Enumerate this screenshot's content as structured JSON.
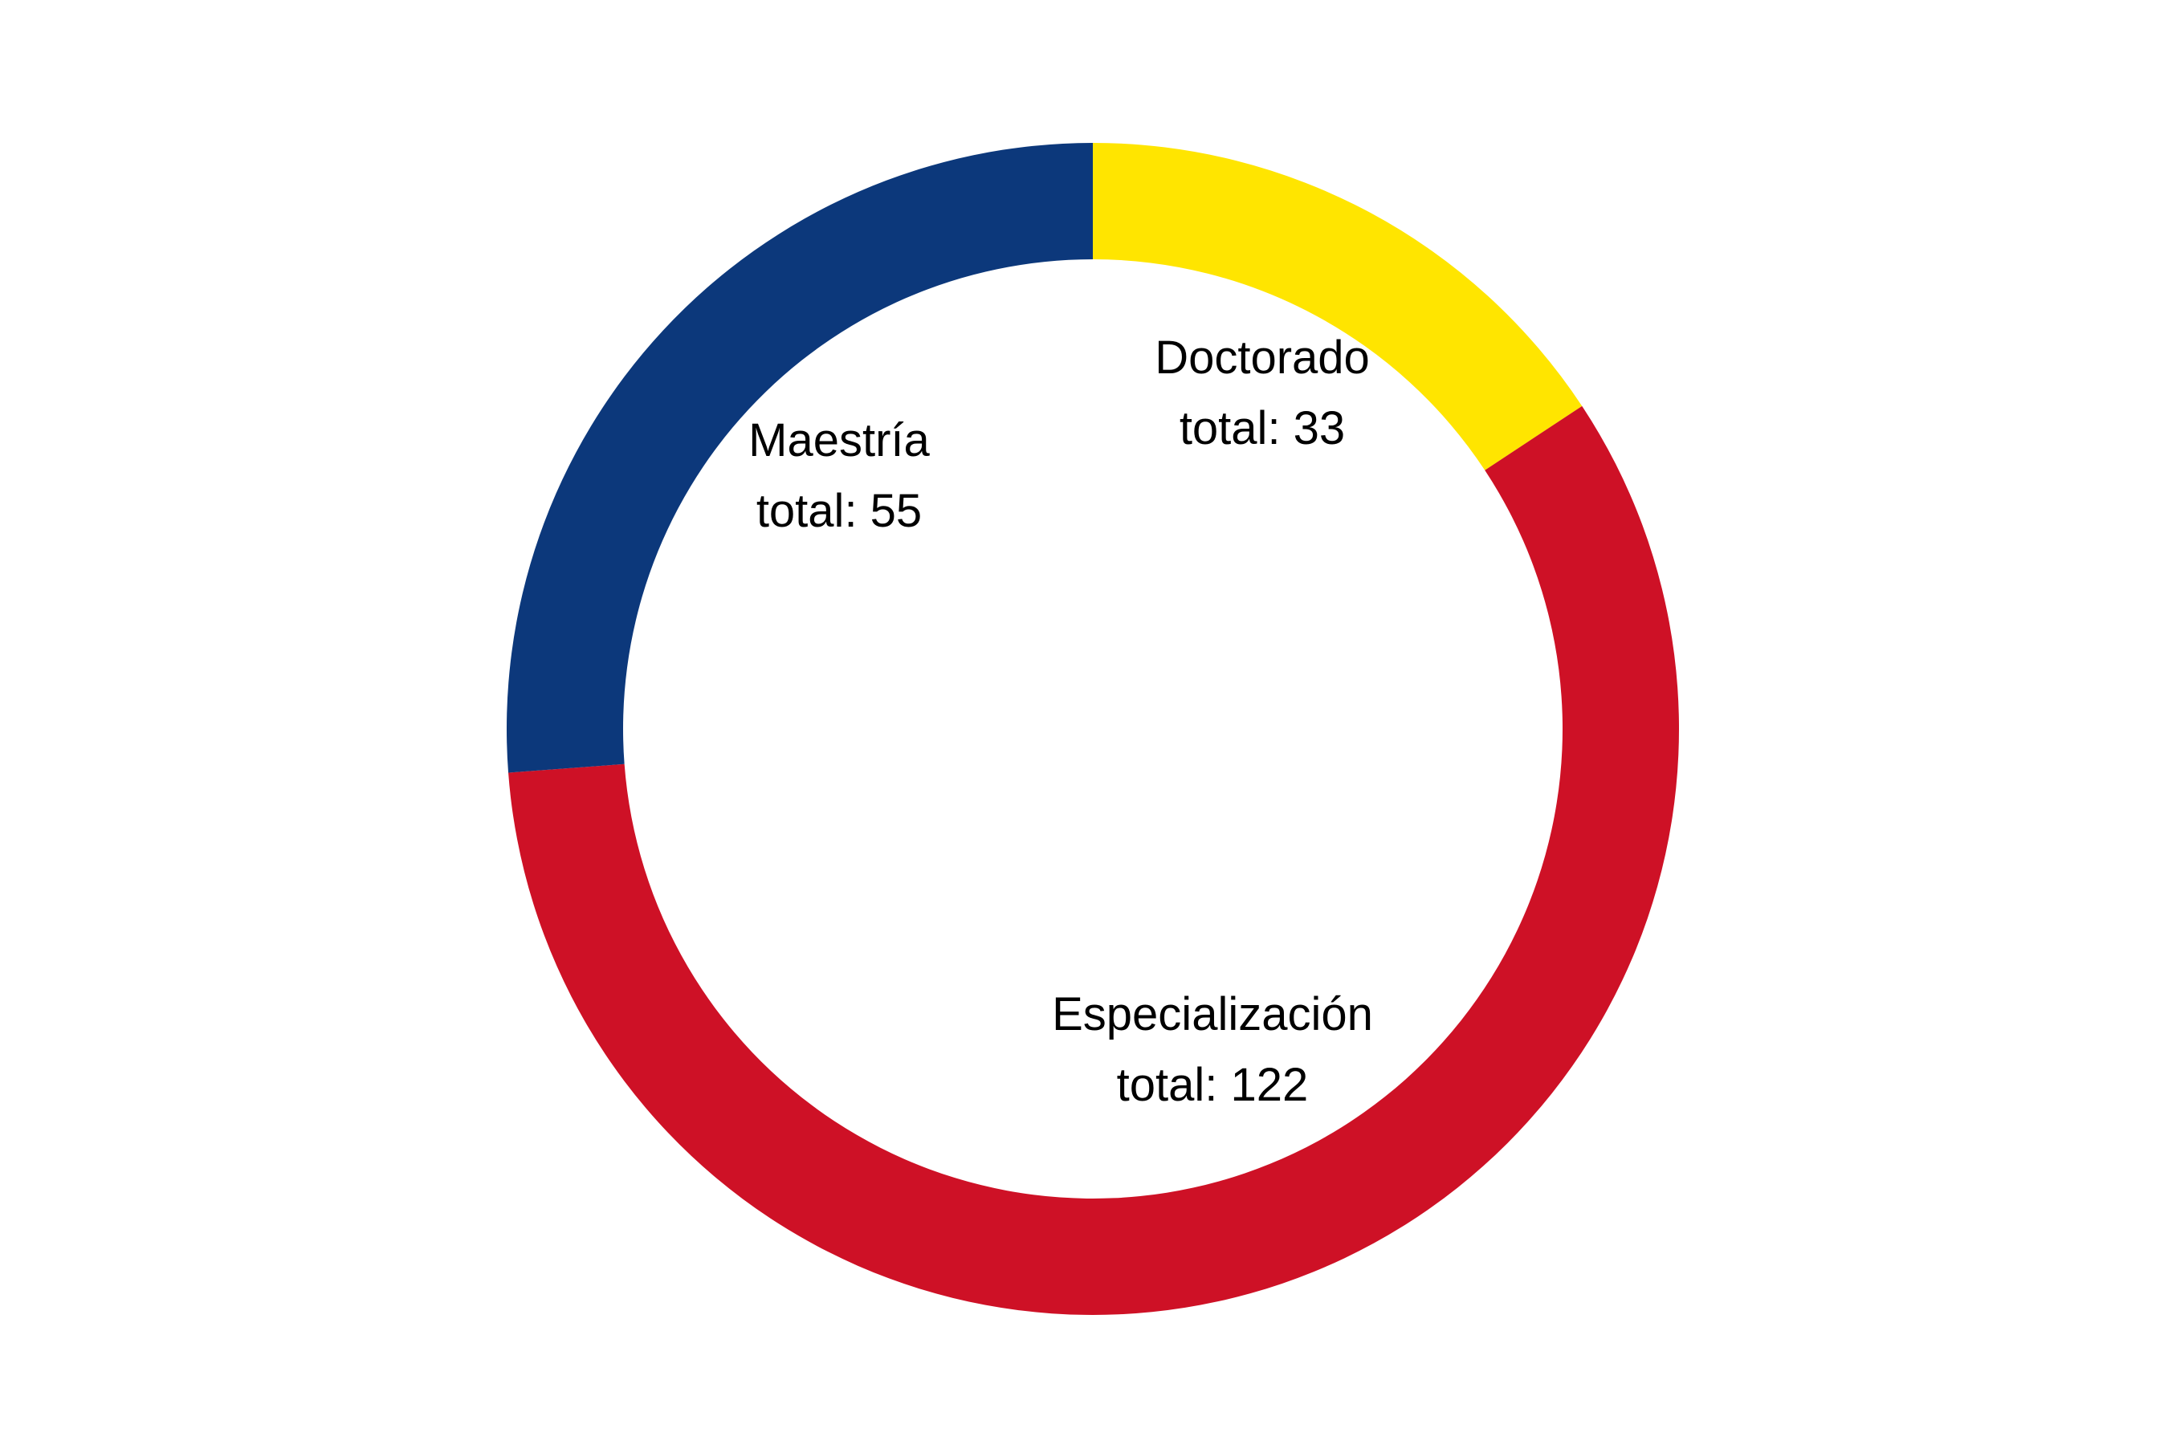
{
  "chart_data": {
    "type": "pie",
    "variant": "donut",
    "slices": [
      {
        "name": "Doctorado",
        "value": 33,
        "value_label": "total: 33",
        "color": "#FFE500"
      },
      {
        "name": "Especialización",
        "value": 122,
        "value_label": "total: 122",
        "color": "#CE1126"
      },
      {
        "name": "Maestría",
        "value": 55,
        "value_label": "total: 55",
        "color": "#0C387B"
      }
    ],
    "start": "top",
    "direction": "clockwise",
    "legend": "none",
    "labels": "inside-ring"
  }
}
